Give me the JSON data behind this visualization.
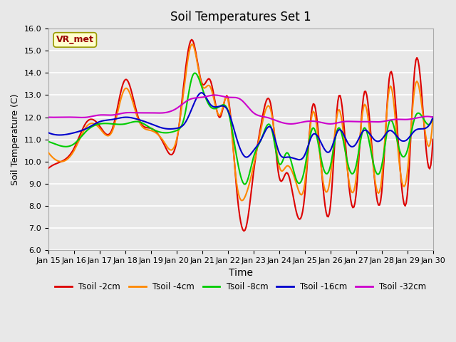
{
  "title": "Soil Temperatures Set 1",
  "xlabel": "Time",
  "ylabel": "Soil Temperature (C)",
  "ylim": [
    6.0,
    16.0
  ],
  "yticks": [
    6.0,
    7.0,
    8.0,
    9.0,
    10.0,
    11.0,
    12.0,
    13.0,
    14.0,
    15.0,
    16.0
  ],
  "background_color": "#e8e8e8",
  "plot_bg_color": "#e8e8e8",
  "grid_color": "#ffffff",
  "annotation_text": "VR_met",
  "annotation_bg": "#ffffcc",
  "annotation_border": "#999900",
  "annotation_text_color": "#990000",
  "series": [
    {
      "label": "Tsoil -2cm",
      "color": "#dd0000",
      "lw": 1.5
    },
    {
      "label": "Tsoil -4cm",
      "color": "#ff8800",
      "lw": 1.5
    },
    {
      "label": "Tsoil -8cm",
      "color": "#00cc00",
      "lw": 1.5
    },
    {
      "label": "Tsoil -16cm",
      "color": "#0000cc",
      "lw": 1.5
    },
    {
      "label": "Tsoil -32cm",
      "color": "#cc00cc",
      "lw": 1.5
    }
  ],
  "xtick_labels": [
    "Jan 15",
    "Jan 16",
    "Jan 17",
    "Jan 18",
    "Jan 19",
    "Jan 20",
    "Jan 21",
    "Jan 22",
    "Jan 23",
    "Jan 24",
    "Jan 25",
    "Jan 26",
    "Jan 27",
    "Jan 28",
    "Jan 29",
    "Jan 30"
  ],
  "n_points": 361
}
